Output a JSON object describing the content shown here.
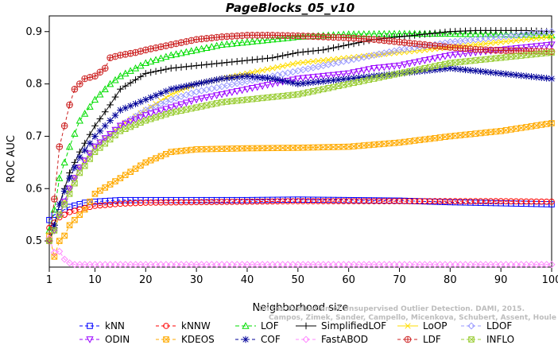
{
  "chart_data": {
    "type": "line",
    "title": "PageBlocks_05_v10",
    "xlabel": "Neighborhood size",
    "ylabel": "ROC AUC",
    "xlim": [
      1,
      100
    ],
    "ylim": [
      0.45,
      0.93
    ],
    "xticks": [
      1,
      10,
      20,
      30,
      40,
      50,
      60,
      70,
      80,
      90,
      100
    ],
    "yticks": [
      0.5,
      0.6,
      0.7,
      0.8,
      0.9
    ],
    "ytick_labels": [
      "0.5",
      "0.6",
      "0.7",
      "0.8",
      "0.9"
    ],
    "grid": false,
    "legend_position": "bottom",
    "watermark": [
      "Campos, Zimek, Sander, Campello, Micenkova, Schubert, Assent, Houle",
      "On the Evaluation of Unsupervised Outlier Detection. DAMI, 2015."
    ],
    "series": [
      {
        "name": "kNN",
        "color": "#0000ff",
        "marker": "square",
        "dash": "4,3",
        "points": [
          [
            1,
            0.54
          ],
          [
            2,
            0.55
          ],
          [
            3,
            0.555
          ],
          [
            5,
            0.565
          ],
          [
            8,
            0.573
          ],
          [
            10,
            0.575
          ],
          [
            15,
            0.578
          ],
          [
            20,
            0.578
          ],
          [
            30,
            0.578
          ],
          [
            40,
            0.578
          ],
          [
            50,
            0.579
          ],
          [
            60,
            0.578
          ],
          [
            70,
            0.577
          ],
          [
            80,
            0.574
          ],
          [
            90,
            0.572
          ],
          [
            100,
            0.57
          ]
        ]
      },
      {
        "name": "kNNW",
        "color": "#ff0000",
        "marker": "circle",
        "dash": "4,3",
        "points": [
          [
            1,
            0.525
          ],
          [
            2,
            0.535
          ],
          [
            3,
            0.545
          ],
          [
            5,
            0.555
          ],
          [
            8,
            0.563
          ],
          [
            10,
            0.567
          ],
          [
            15,
            0.571
          ],
          [
            20,
            0.573
          ],
          [
            30,
            0.574
          ],
          [
            40,
            0.575
          ],
          [
            50,
            0.576
          ],
          [
            60,
            0.576
          ],
          [
            70,
            0.576
          ],
          [
            80,
            0.576
          ],
          [
            90,
            0.576
          ],
          [
            100,
            0.575
          ]
        ]
      },
      {
        "name": "LOF",
        "color": "#00dd00",
        "marker": "triangle",
        "dash": "5,3",
        "points": [
          [
            1,
            0.52
          ],
          [
            2,
            0.56
          ],
          [
            3,
            0.62
          ],
          [
            5,
            0.68
          ],
          [
            7,
            0.73
          ],
          [
            10,
            0.77
          ],
          [
            13,
            0.8
          ],
          [
            15,
            0.815
          ],
          [
            20,
            0.84
          ],
          [
            25,
            0.855
          ],
          [
            30,
            0.865
          ],
          [
            35,
            0.875
          ],
          [
            40,
            0.88
          ],
          [
            45,
            0.885
          ],
          [
            50,
            0.89
          ],
          [
            60,
            0.895
          ],
          [
            70,
            0.896
          ],
          [
            80,
            0.896
          ],
          [
            90,
            0.895
          ],
          [
            100,
            0.893
          ]
        ]
      },
      {
        "name": "SimplifiedLOF",
        "color": "#000000",
        "marker": "plus",
        "dash": "",
        "points": [
          [
            1,
            0.5
          ],
          [
            2,
            0.53
          ],
          [
            3,
            0.57
          ],
          [
            5,
            0.63
          ],
          [
            7,
            0.67
          ],
          [
            10,
            0.72
          ],
          [
            13,
            0.76
          ],
          [
            15,
            0.79
          ],
          [
            20,
            0.82
          ],
          [
            25,
            0.83
          ],
          [
            30,
            0.835
          ],
          [
            35,
            0.84
          ],
          [
            40,
            0.845
          ],
          [
            45,
            0.85
          ],
          [
            50,
            0.86
          ],
          [
            55,
            0.865
          ],
          [
            60,
            0.875
          ],
          [
            65,
            0.885
          ],
          [
            70,
            0.89
          ],
          [
            75,
            0.895
          ],
          [
            80,
            0.9
          ],
          [
            85,
            0.902
          ],
          [
            90,
            0.902
          ],
          [
            95,
            0.902
          ],
          [
            100,
            0.9
          ]
        ]
      },
      {
        "name": "LoOP",
        "color": "#ffdd00",
        "marker": "x",
        "dash": "",
        "points": [
          [
            1,
            0.5
          ],
          [
            2,
            0.52
          ],
          [
            3,
            0.55
          ],
          [
            5,
            0.6
          ],
          [
            7,
            0.64
          ],
          [
            10,
            0.68
          ],
          [
            15,
            0.72
          ],
          [
            20,
            0.75
          ],
          [
            25,
            0.78
          ],
          [
            30,
            0.8
          ],
          [
            35,
            0.81
          ],
          [
            40,
            0.82
          ],
          [
            45,
            0.83
          ],
          [
            50,
            0.84
          ],
          [
            55,
            0.845
          ],
          [
            60,
            0.85
          ],
          [
            65,
            0.855
          ],
          [
            70,
            0.86
          ],
          [
            75,
            0.865
          ],
          [
            80,
            0.87
          ],
          [
            85,
            0.875
          ],
          [
            90,
            0.88
          ],
          [
            95,
            0.885
          ],
          [
            100,
            0.89
          ]
        ]
      },
      {
        "name": "LDOF",
        "color": "#9999ff",
        "marker": "diamond",
        "dash": "4,3",
        "points": [
          [
            1,
            0.5
          ],
          [
            2,
            0.52
          ],
          [
            3,
            0.55
          ],
          [
            5,
            0.6
          ],
          [
            7,
            0.64
          ],
          [
            10,
            0.68
          ],
          [
            15,
            0.72
          ],
          [
            20,
            0.75
          ],
          [
            25,
            0.77
          ],
          [
            30,
            0.785
          ],
          [
            35,
            0.795
          ],
          [
            40,
            0.805
          ],
          [
            45,
            0.815
          ],
          [
            50,
            0.825
          ],
          [
            55,
            0.835
          ],
          [
            60,
            0.845
          ],
          [
            65,
            0.855
          ],
          [
            70,
            0.865
          ],
          [
            75,
            0.872
          ],
          [
            80,
            0.88
          ],
          [
            85,
            0.885
          ],
          [
            90,
            0.89
          ],
          [
            95,
            0.895
          ],
          [
            100,
            0.9
          ]
        ]
      },
      {
        "name": "ODIN",
        "color": "#9900ff",
        "marker": "triangle-down",
        "dash": "4,3",
        "points": [
          [
            1,
            0.5
          ],
          [
            2,
            0.52
          ],
          [
            3,
            0.55
          ],
          [
            5,
            0.6
          ],
          [
            7,
            0.64
          ],
          [
            10,
            0.68
          ],
          [
            15,
            0.72
          ],
          [
            20,
            0.74
          ],
          [
            25,
            0.755
          ],
          [
            30,
            0.77
          ],
          [
            35,
            0.78
          ],
          [
            40,
            0.79
          ],
          [
            45,
            0.8
          ],
          [
            50,
            0.81
          ],
          [
            55,
            0.815
          ],
          [
            60,
            0.82
          ],
          [
            65,
            0.83
          ],
          [
            70,
            0.835
          ],
          [
            75,
            0.845
          ],
          [
            80,
            0.855
          ],
          [
            85,
            0.86
          ],
          [
            90,
            0.865
          ],
          [
            95,
            0.87
          ],
          [
            100,
            0.875
          ]
        ]
      },
      {
        "name": "KDEOS",
        "color": "#ffaa00",
        "marker": "square-x",
        "dash": "4,3",
        "points": [
          [
            1,
            0.51
          ],
          [
            2,
            0.47
          ],
          [
            3,
            0.5
          ],
          [
            4,
            0.51
          ],
          [
            5,
            0.53
          ],
          [
            8,
            0.56
          ],
          [
            10,
            0.59
          ],
          [
            15,
            0.62
          ],
          [
            20,
            0.65
          ],
          [
            25,
            0.67
          ],
          [
            30,
            0.675
          ],
          [
            40,
            0.677
          ],
          [
            50,
            0.678
          ],
          [
            60,
            0.68
          ],
          [
            70,
            0.688
          ],
          [
            80,
            0.7
          ],
          [
            90,
            0.71
          ],
          [
            100,
            0.725
          ]
        ]
      },
      {
        "name": "COF",
        "color": "#000099",
        "marker": "star",
        "dash": "4,3",
        "points": [
          [
            1,
            0.5
          ],
          [
            2,
            0.53
          ],
          [
            3,
            0.57
          ],
          [
            5,
            0.62
          ],
          [
            7,
            0.66
          ],
          [
            10,
            0.7
          ],
          [
            13,
            0.73
          ],
          [
            15,
            0.75
          ],
          [
            20,
            0.77
          ],
          [
            25,
            0.79
          ],
          [
            30,
            0.8
          ],
          [
            35,
            0.81
          ],
          [
            40,
            0.815
          ],
          [
            45,
            0.81
          ],
          [
            50,
            0.8
          ],
          [
            55,
            0.805
          ],
          [
            60,
            0.81
          ],
          [
            65,
            0.815
          ],
          [
            70,
            0.82
          ],
          [
            75,
            0.825
          ],
          [
            80,
            0.83
          ],
          [
            85,
            0.825
          ],
          [
            90,
            0.82
          ],
          [
            95,
            0.815
          ],
          [
            100,
            0.81
          ]
        ]
      },
      {
        "name": "FastABOD",
        "color": "#ff88ff",
        "marker": "diamond",
        "dash": "4,3",
        "points": [
          [
            1,
            0.505
          ],
          [
            2,
            0.478
          ],
          [
            3,
            0.48
          ],
          [
            4,
            0.465
          ],
          [
            5,
            0.458
          ],
          [
            6,
            0.455
          ],
          [
            8,
            0.455
          ],
          [
            10,
            0.455
          ],
          [
            20,
            0.455
          ],
          [
            30,
            0.455
          ],
          [
            40,
            0.455
          ],
          [
            50,
            0.455
          ],
          [
            60,
            0.455
          ],
          [
            70,
            0.455
          ],
          [
            80,
            0.455
          ],
          [
            90,
            0.455
          ],
          [
            100,
            0.455
          ]
        ]
      },
      {
        "name": "LDF",
        "color": "#cc2222",
        "marker": "circle-plus",
        "dash": "4,3",
        "points": [
          [
            1,
            0.5
          ],
          [
            2,
            0.58
          ],
          [
            3,
            0.68
          ],
          [
            4,
            0.72
          ],
          [
            5,
            0.76
          ],
          [
            6,
            0.79
          ],
          [
            7,
            0.8
          ],
          [
            8,
            0.81
          ],
          [
            10,
            0.815
          ],
          [
            12,
            0.83
          ],
          [
            13,
            0.85
          ],
          [
            15,
            0.855
          ],
          [
            18,
            0.86
          ],
          [
            20,
            0.865
          ],
          [
            25,
            0.875
          ],
          [
            30,
            0.885
          ],
          [
            35,
            0.89
          ],
          [
            40,
            0.893
          ],
          [
            45,
            0.893
          ],
          [
            50,
            0.892
          ],
          [
            55,
            0.89
          ],
          [
            60,
            0.888
          ],
          [
            65,
            0.885
          ],
          [
            70,
            0.88
          ],
          [
            75,
            0.875
          ],
          [
            80,
            0.87
          ],
          [
            85,
            0.866
          ],
          [
            90,
            0.864
          ],
          [
            95,
            0.863
          ],
          [
            100,
            0.862
          ]
        ]
      },
      {
        "name": "INFLO",
        "color": "#99cc33",
        "marker": "square-x",
        "dash": "4,3",
        "points": [
          [
            1,
            0.5
          ],
          [
            2,
            0.52
          ],
          [
            3,
            0.55
          ],
          [
            5,
            0.59
          ],
          [
            7,
            0.63
          ],
          [
            10,
            0.67
          ],
          [
            15,
            0.71
          ],
          [
            20,
            0.73
          ],
          [
            25,
            0.745
          ],
          [
            30,
            0.755
          ],
          [
            35,
            0.765
          ],
          [
            40,
            0.77
          ],
          [
            45,
            0.775
          ],
          [
            50,
            0.78
          ],
          [
            55,
            0.79
          ],
          [
            60,
            0.8
          ],
          [
            65,
            0.81
          ],
          [
            70,
            0.82
          ],
          [
            75,
            0.83
          ],
          [
            80,
            0.84
          ],
          [
            85,
            0.845
          ],
          [
            90,
            0.85
          ],
          [
            95,
            0.855
          ],
          [
            100,
            0.86
          ]
        ]
      }
    ],
    "legend": [
      [
        "kNN",
        "kNNW",
        "LOF",
        "SimplifiedLOF",
        "LoOP",
        "LDOF"
      ],
      [
        "ODIN",
        "KDEOS",
        "COF",
        "FastABOD",
        "LDF",
        "INFLO"
      ]
    ]
  }
}
